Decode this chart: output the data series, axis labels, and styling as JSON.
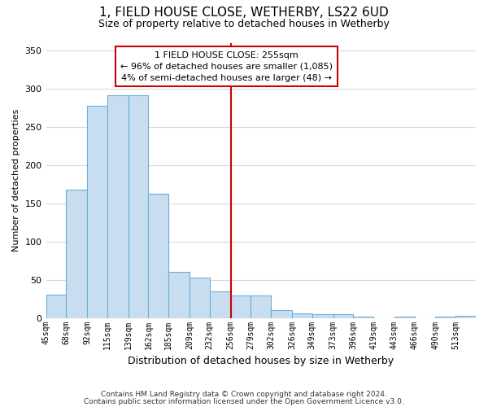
{
  "title": "1, FIELD HOUSE CLOSE, WETHERBY, LS22 6UD",
  "subtitle": "Size of property relative to detached houses in Wetherby",
  "xlabel": "Distribution of detached houses by size in Wetherby",
  "ylabel": "Number of detached properties",
  "footnote1": "Contains HM Land Registry data © Crown copyright and database right 2024.",
  "footnote2": "Contains public sector information licensed under the Open Government Licence v3.0.",
  "annotation_title": "1 FIELD HOUSE CLOSE: 255sqm",
  "annotation_line1": "← 96% of detached houses are smaller (1,085)",
  "annotation_line2": "4% of semi-detached houses are larger (48) →",
  "property_size": 255,
  "bar_labels": [
    "45sqm",
    "68sqm",
    "92sqm",
    "115sqm",
    "139sqm",
    "162sqm",
    "185sqm",
    "209sqm",
    "232sqm",
    "256sqm",
    "279sqm",
    "302sqm",
    "326sqm",
    "349sqm",
    "373sqm",
    "396sqm",
    "419sqm",
    "443sqm",
    "466sqm",
    "490sqm",
    "513sqm"
  ],
  "bar_heights": [
    30,
    168,
    278,
    291,
    291,
    162,
    60,
    53,
    35,
    29,
    29,
    10,
    6,
    5,
    5,
    2,
    0,
    2,
    0,
    2,
    3
  ],
  "bin_edges": [
    45,
    68,
    92,
    115,
    139,
    162,
    185,
    209,
    232,
    256,
    279,
    302,
    326,
    349,
    373,
    396,
    419,
    443,
    466,
    490,
    513,
    536
  ],
  "bar_color": "#c9ddf0",
  "bar_edge_color": "#6baed6",
  "vline_x": 256,
  "vline_color": "#cc0000",
  "background_color": "#ffffff",
  "plot_bg_color": "#ffffff",
  "grid_color": "#d0d8e8",
  "annotation_box_color": "#ffffff",
  "annotation_border_color": "#cc0000",
  "ylim": [
    0,
    360
  ],
  "yticks": [
    0,
    50,
    100,
    150,
    200,
    250,
    300,
    350
  ]
}
